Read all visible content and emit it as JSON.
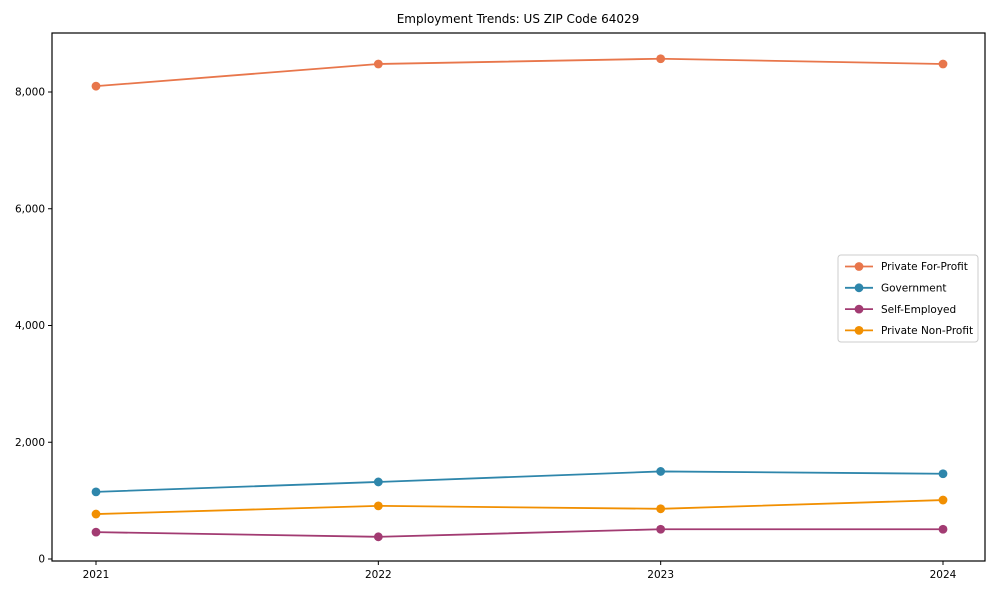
{
  "figure": {
    "background": "#ffffff",
    "frame_color": "#000000",
    "tick_color": "#000000"
  },
  "chart_data": {
    "type": "line",
    "title": "Employment Trends: US ZIP Code 64029",
    "xlabel": "",
    "ylabel": "",
    "x": [
      2021,
      2022,
      2023,
      2024
    ],
    "xtick_labels": [
      "2021",
      "2022",
      "2023",
      "2024"
    ],
    "yticks": [
      0,
      2000,
      4000,
      6000,
      8000
    ],
    "ytick_labels": [
      "0",
      "2,000",
      "4,000",
      "6,000",
      "8,000"
    ],
    "ylim": [
      0,
      9000
    ],
    "grid": false,
    "legend_position": "center right",
    "series": [
      {
        "name": "Private For-Profit",
        "color": "#E8764B",
        "values": [
          8100,
          8480,
          8570,
          8480
        ]
      },
      {
        "name": "Government",
        "color": "#2E86AB",
        "values": [
          1150,
          1320,
          1500,
          1460
        ]
      },
      {
        "name": "Self-Employed",
        "color": "#A23B72",
        "values": [
          460,
          380,
          510,
          510
        ]
      },
      {
        "name": "Private Non-Profit",
        "color": "#F18F01",
        "values": [
          770,
          910,
          860,
          1010
        ]
      }
    ]
  }
}
